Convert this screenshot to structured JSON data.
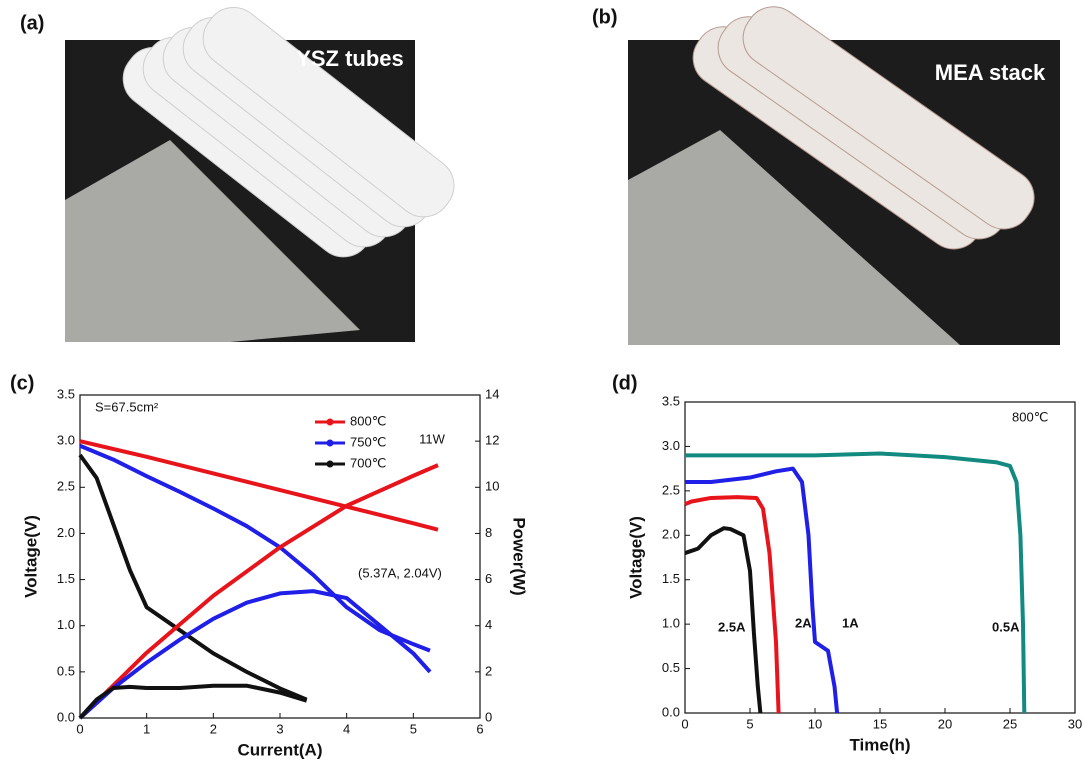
{
  "photos": [
    {
      "label": "(a)",
      "caption": "YSZ tubes"
    },
    {
      "label": "(b)",
      "caption": "MEA stack"
    }
  ],
  "chart_data": [
    {
      "type": "line",
      "panel_label": "(c)",
      "xlabel": "Current(A)",
      "ylabel": "Voltage(V)",
      "y2label": "Power(W)",
      "xlim": [
        0,
        6
      ],
      "xticks": [
        0,
        1,
        2,
        3,
        4,
        5,
        6
      ],
      "ylim": [
        0,
        3.5
      ],
      "yticks": [
        {
          "value": 0,
          "label": "0.0"
        },
        0.5,
        {
          "value": 1,
          "label": "1.0"
        },
        1.5,
        {
          "value": 2,
          "label": "2.0"
        },
        2.5,
        {
          "value": 3,
          "label": "3.0"
        },
        3.5
      ],
      "y2lim": [
        0,
        14
      ],
      "y2ticks": [
        0,
        2,
        4,
        6,
        8,
        10,
        12,
        14
      ],
      "annotations": [
        "S=67.5cm²",
        "11W",
        "(5.37A, 2.04V)"
      ],
      "legend": "upper center",
      "series": [
        {
          "name": "800℃",
          "color": "#e8141c",
          "x": [
            0,
            1,
            2,
            3,
            4,
            5,
            5.37
          ],
          "values": [
            3.0,
            2.83,
            2.65,
            2.47,
            2.29,
            2.11,
            2.04
          ]
        },
        {
          "name": "750℃",
          "color": "#1f1fe8",
          "x": [
            0,
            0.5,
            1,
            1.5,
            2,
            2.5,
            3,
            3.5,
            4,
            4.5,
            5,
            5.25
          ],
          "values": [
            2.95,
            2.8,
            2.62,
            2.45,
            2.27,
            2.08,
            1.85,
            1.55,
            1.2,
            0.95,
            0.8,
            0.73
          ]
        },
        {
          "name": "700℃",
          "color": "#111111",
          "x": [
            0,
            0.25,
            0.5,
            0.75,
            1,
            1.5,
            2,
            2.5,
            3,
            3.4
          ],
          "values": [
            2.85,
            2.6,
            2.1,
            1.6,
            1.2,
            0.95,
            0.7,
            0.5,
            0.32,
            0.2
          ]
        },
        {
          "color": "#e8141c",
          "axis": "y2",
          "x": [
            0,
            1,
            2,
            3,
            4,
            5,
            5.37
          ],
          "values": [
            0,
            2.83,
            5.3,
            7.4,
            9.2,
            10.5,
            10.96
          ]
        },
        {
          "color": "#1f1fe8",
          "axis": "y2",
          "x": [
            0,
            0.5,
            1,
            1.5,
            2,
            2.5,
            3,
            3.5,
            4,
            4.5,
            5,
            5.25
          ],
          "values": [
            0,
            1.3,
            2.4,
            3.4,
            4.3,
            5.0,
            5.4,
            5.5,
            5.2,
            4.0,
            2.8,
            2.0
          ]
        },
        {
          "color": "#111111",
          "axis": "y2",
          "x": [
            0,
            0.25,
            0.5,
            0.75,
            1,
            1.5,
            2,
            2.5,
            3,
            3.4
          ],
          "values": [
            0,
            0.8,
            1.3,
            1.35,
            1.3,
            1.3,
            1.4,
            1.4,
            1.1,
            0.75
          ]
        }
      ]
    },
    {
      "type": "line",
      "panel_label": "(d)",
      "xlabel": "Time(h)",
      "ylabel": "Voltage(V)",
      "xlim": [
        0,
        30
      ],
      "xticks": [
        0,
        5,
        10,
        15,
        20,
        25,
        30
      ],
      "ylim": [
        0,
        3.5
      ],
      "yticks": [
        {
          "value": 0,
          "label": "0.0"
        },
        0.5,
        {
          "value": 1,
          "label": "1.0"
        },
        1.5,
        {
          "value": 2,
          "label": "2.0"
        },
        2.5,
        {
          "value": 3,
          "label": "3.0"
        },
        3.5
      ],
      "annotations": [
        "800℃"
      ],
      "series": [
        {
          "name": "2.5A",
          "color": "#111111",
          "x": [
            0,
            1,
            2,
            3,
            3.5,
            4.5,
            5,
            5.3,
            5.6,
            5.8
          ],
          "values": [
            1.8,
            1.85,
            2.0,
            2.08,
            2.07,
            2.0,
            1.6,
            0.9,
            0.3,
            0
          ]
        },
        {
          "name": "2A",
          "color": "#e8141c",
          "x": [
            0,
            0.5,
            2,
            4,
            5.5,
            6,
            6.5,
            7,
            7.2
          ],
          "values": [
            2.35,
            2.38,
            2.42,
            2.43,
            2.42,
            2.3,
            1.8,
            0.8,
            0
          ]
        },
        {
          "name": "1A",
          "color": "#1f1fe8",
          "x": [
            0,
            2,
            5,
            7,
            8.3,
            9,
            9.5,
            9.8,
            10,
            10.5,
            11,
            11.5,
            11.7
          ],
          "values": [
            2.6,
            2.6,
            2.65,
            2.72,
            2.75,
            2.6,
            2.0,
            1.2,
            0.8,
            0.75,
            0.7,
            0.3,
            0
          ]
        },
        {
          "name": "0.5A",
          "color": "#138a80",
          "x": [
            0,
            5,
            10,
            15,
            20,
            24,
            25,
            25.5,
            25.8,
            26,
            26.1
          ],
          "values": [
            2.9,
            2.9,
            2.9,
            2.92,
            2.88,
            2.82,
            2.78,
            2.6,
            2.0,
            1.0,
            0
          ]
        }
      ]
    }
  ]
}
